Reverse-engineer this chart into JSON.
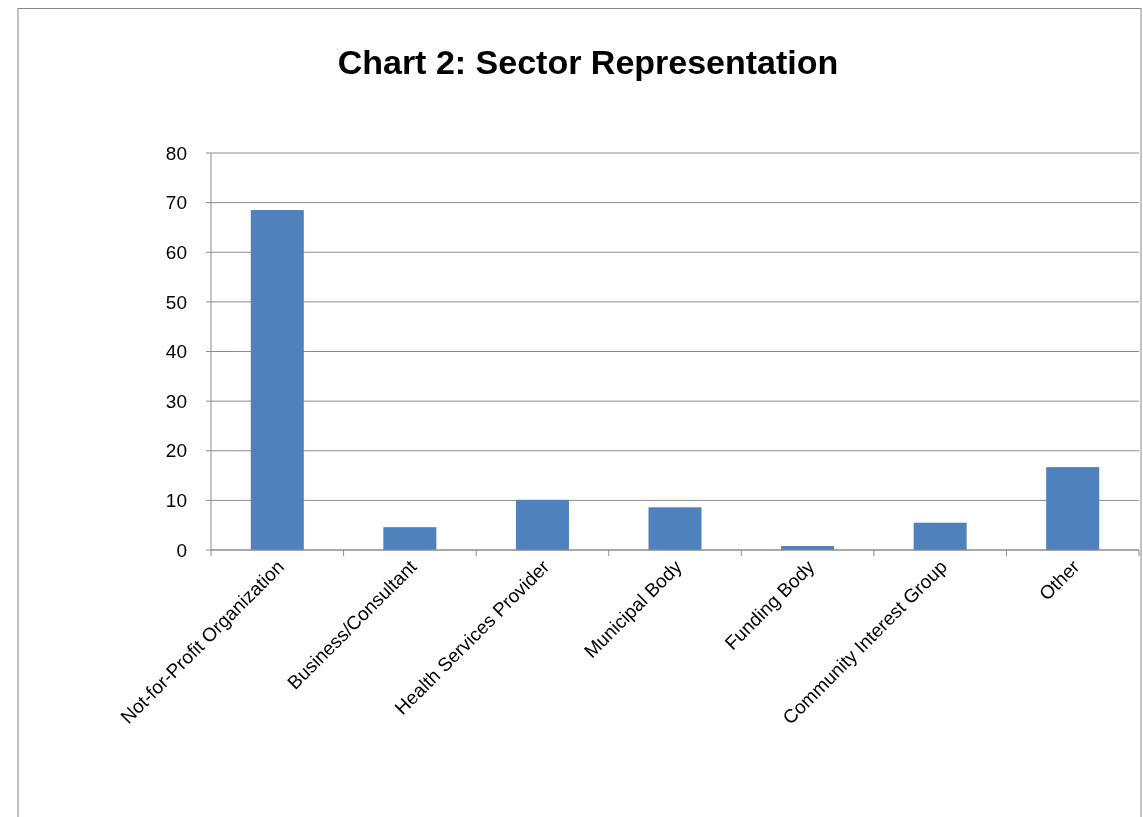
{
  "chart_data": {
    "type": "bar",
    "title": "Chart 2: Sector Representation",
    "categories": [
      "Not-for-Profit Organization",
      "Business/Consultant",
      "Health Services Provider",
      "Municipal Body",
      "Funding Body",
      "Community Interest Group",
      "Other"
    ],
    "values": [
      68.5,
      4.6,
      10.1,
      8.6,
      0.8,
      5.5,
      16.7
    ],
    "color": "#4f81bd",
    "ylim": [
      0,
      80
    ],
    "yticks": [
      0,
      10,
      20,
      30,
      40,
      50,
      60,
      70,
      80
    ],
    "grid": "y"
  }
}
